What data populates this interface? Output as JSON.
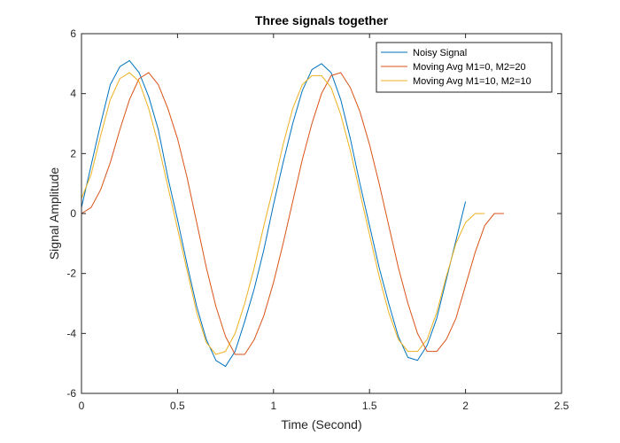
{
  "chart_data": {
    "type": "line",
    "title": "Three signals together",
    "xlabel": "Time (Second)",
    "ylabel": "Signal Amplitude",
    "xlim": [
      0,
      2.5
    ],
    "ylim": [
      -6,
      6
    ],
    "xticks": [
      0,
      0.5,
      1,
      1.5,
      2,
      2.5
    ],
    "xtick_labels": [
      "0",
      "0.5",
      "1",
      "1.5",
      "2",
      "2.5"
    ],
    "yticks": [
      -6,
      -4,
      -2,
      0,
      2,
      4,
      6
    ],
    "ytick_labels": [
      "-6",
      "-4",
      "-2",
      "0",
      "2",
      "4",
      "6"
    ],
    "grid": false,
    "box": true,
    "legend_position": "top-right",
    "series": [
      {
        "name": "Noisy Signal",
        "color": "#0072BD",
        "x": [
          0,
          0.05,
          0.1,
          0.15,
          0.2,
          0.25,
          0.3,
          0.35,
          0.4,
          0.45,
          0.5,
          0.55,
          0.6,
          0.65,
          0.7,
          0.75,
          0.8,
          0.85,
          0.9,
          0.95,
          1.0,
          1.05,
          1.1,
          1.15,
          1.2,
          1.25,
          1.3,
          1.35,
          1.4,
          1.45,
          1.5,
          1.55,
          1.6,
          1.65,
          1.7,
          1.75,
          1.8,
          1.85,
          1.9,
          1.95,
          2.0
        ],
        "values": [
          0.2,
          1.6,
          3.0,
          4.3,
          4.9,
          5.1,
          4.7,
          3.9,
          2.8,
          1.2,
          -0.2,
          -1.7,
          -3.1,
          -4.2,
          -4.9,
          -5.1,
          -4.6,
          -3.6,
          -2.5,
          -1.2,
          0.3,
          1.7,
          3.0,
          4.1,
          4.8,
          5.0,
          4.7,
          3.8,
          2.5,
          1.0,
          -0.4,
          -1.8,
          -3.0,
          -4.1,
          -4.8,
          -4.9,
          -4.4,
          -3.5,
          -2.2,
          -0.9,
          0.4
        ]
      },
      {
        "name": "Moving Avg M1=0, M2=20",
        "color": "#D95319",
        "x": [
          0,
          0.05,
          0.1,
          0.15,
          0.2,
          0.25,
          0.3,
          0.35,
          0.4,
          0.45,
          0.5,
          0.55,
          0.6,
          0.65,
          0.7,
          0.75,
          0.8,
          0.85,
          0.9,
          0.95,
          1.0,
          1.05,
          1.1,
          1.15,
          1.2,
          1.25,
          1.3,
          1.35,
          1.4,
          1.45,
          1.5,
          1.55,
          1.6,
          1.65,
          1.7,
          1.75,
          1.8,
          1.85,
          1.9,
          1.95,
          2.0,
          2.05,
          2.1,
          2.15,
          2.2
        ],
        "values": [
          0.0,
          0.2,
          0.8,
          1.7,
          2.8,
          3.8,
          4.5,
          4.7,
          4.3,
          3.5,
          2.5,
          1.2,
          -0.3,
          -1.8,
          -3.1,
          -4.1,
          -4.7,
          -4.7,
          -4.2,
          -3.4,
          -2.3,
          -1.0,
          0.4,
          1.8,
          3.0,
          4.0,
          4.6,
          4.7,
          4.2,
          3.4,
          2.3,
          1.0,
          -0.4,
          -1.8,
          -3.0,
          -4.0,
          -4.6,
          -4.6,
          -4.2,
          -3.5,
          -2.4,
          -1.3,
          -0.4,
          0.0,
          0.0
        ]
      },
      {
        "name": "Moving Avg M1=10, M2=10",
        "color": "#EDB120",
        "x": [
          0,
          0.05,
          0.1,
          0.15,
          0.2,
          0.25,
          0.3,
          0.35,
          0.4,
          0.45,
          0.5,
          0.55,
          0.6,
          0.65,
          0.7,
          0.75,
          0.8,
          0.85,
          0.9,
          0.95,
          1.0,
          1.05,
          1.1,
          1.15,
          1.2,
          1.25,
          1.3,
          1.35,
          1.4,
          1.45,
          1.5,
          1.55,
          1.6,
          1.65,
          1.7,
          1.75,
          1.8,
          1.85,
          1.9,
          1.95,
          2.0,
          2.05,
          2.1
        ],
        "values": [
          0.5,
          1.3,
          2.6,
          3.8,
          4.5,
          4.7,
          4.4,
          3.5,
          2.3,
          0.9,
          -0.5,
          -1.9,
          -3.3,
          -4.3,
          -4.7,
          -4.6,
          -4.0,
          -3.0,
          -1.8,
          -0.4,
          0.9,
          2.3,
          3.5,
          4.3,
          4.6,
          4.6,
          4.2,
          3.3,
          2.1,
          0.7,
          -0.7,
          -2.1,
          -3.3,
          -4.2,
          -4.6,
          -4.6,
          -4.2,
          -3.3,
          -2.1,
          -1.0,
          -0.3,
          0.0,
          0.0
        ]
      }
    ]
  }
}
